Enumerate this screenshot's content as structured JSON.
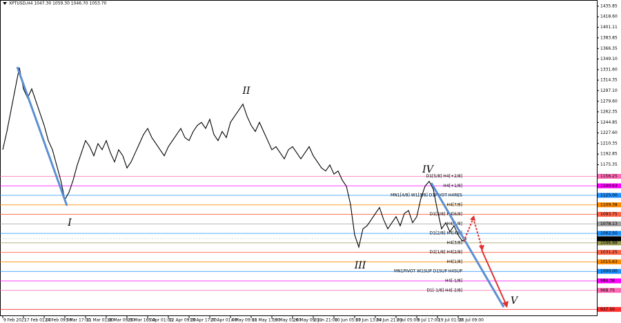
{
  "chart_data": {
    "type": "line",
    "title": "XPTUSD,H4 1047.30 1059.30 1046.70 1053.70",
    "categories": [
      "9 Feb 2021",
      null,
      null,
      null,
      null,
      "17 Feb 01:00",
      null,
      null,
      null,
      null,
      "24 Feb 09:00",
      null,
      null,
      null,
      null,
      "3 Mar 17:00",
      null,
      null,
      null,
      null,
      "11 Mar 01:00",
      null,
      null,
      null,
      null,
      "18 Mar 09:00",
      null,
      null,
      null,
      null,
      "25 Mar 16:00",
      null,
      null,
      null,
      null,
      "5 Apr 01:00",
      null,
      null,
      null,
      null,
      "12 Apr 09:00",
      null,
      null,
      null,
      null,
      "19 Apr 17:00",
      null,
      null,
      null,
      null,
      "27 Apr 01:00",
      null,
      null,
      null,
      null,
      "4 May 09:00",
      null,
      null,
      null,
      null,
      "11 May 17:00",
      null,
      null,
      null,
      null,
      "19 May 01:00",
      null,
      null,
      null,
      null,
      "26 May 09:00",
      null,
      null,
      null,
      null,
      "2 Jun 21:00",
      null,
      null,
      null,
      null,
      "10 Jun 05:00",
      null,
      null,
      null,
      null,
      "17 Jun 13:00",
      null,
      null,
      null,
      null,
      "24 Jun 21:00",
      null,
      null,
      null,
      null,
      "2 Jul 05:00",
      null,
      null,
      null,
      null,
      "9 Jul 17:00",
      null,
      null,
      null,
      null,
      "19 Jul 01:00",
      null,
      null,
      null,
      null,
      "26 Jul 09:00",
      null,
      null
    ],
    "series": [
      {
        "name": "XPTUSD",
        "color": "#000000",
        "values": [
          1200,
          1230,
          1265,
          1300,
          1335,
          1300,
          1285,
          1300,
          1280,
          1260,
          1240,
          1215,
          1200,
          1175,
          1150,
          1118,
          1130,
          1150,
          1175,
          1195,
          1215,
          1205,
          1190,
          1210,
          1200,
          1215,
          1195,
          1180,
          1200,
          1190,
          1170,
          1180,
          1195,
          1210,
          1225,
          1235,
          1220,
          1210,
          1200,
          1190,
          1205,
          1215,
          1225,
          1235,
          1220,
          1215,
          1230,
          1240,
          1245,
          1235,
          1250,
          1225,
          1215,
          1230,
          1220,
          1245,
          1255,
          1265,
          1275,
          1255,
          1240,
          1230,
          1245,
          1230,
          1215,
          1200,
          1205,
          1195,
          1185,
          1200,
          1205,
          1195,
          1185,
          1195,
          1205,
          1190,
          1180,
          1170,
          1165,
          1175,
          1160,
          1165,
          1150,
          1140,
          1110,
          1060,
          1040,
          1070,
          1075,
          1085,
          1095,
          1105,
          1085,
          1070,
          1080,
          1090,
          1075,
          1095,
          1100,
          1080,
          1090,
          1120,
          1140,
          1148,
          1135,
          1100,
          1070,
          1080,
          1065,
          1075,
          1060,
          1050,
          1053.7
        ]
      }
    ],
    "ylim": [
      926.5,
      1446.1
    ],
    "yticks": [
      1435.85,
      {
        "value": 1418.6,
        "label": "1418.60"
      },
      1401.11,
      1383.85,
      1366.35,
      {
        "value": 1349.1,
        "label": "1349.10"
      },
      {
        "value": 1331.6,
        "label": "1331.60"
      },
      1314.35,
      {
        "value": 1297.1,
        "label": "1297.10"
      },
      {
        "value": 1279.6,
        "label": "1279.60"
      },
      1262.35,
      1244.85,
      {
        "value": 1227.6,
        "label": "1227.60"
      },
      1210.35,
      1192.85,
      1175.35
    ],
    "levels": [
      {
        "value": 1156.25,
        "axis_label": "1156.25",
        "text": "D1[5/8] H4[+2/8]",
        "color": "#ff69b4"
      },
      {
        "value": 1140.63,
        "axis_label": "1140.63",
        "text": "H4[+1/8]",
        "color": "#ff00ff"
      },
      {
        "value": 1125,
        "axis_label": "1125.00",
        "text": "MN1[4/8] W1[3/8] D1PIVOT H4RES",
        "color": "#1e90ff"
      },
      {
        "value": 1109.38,
        "axis_label": "1109.38",
        "text": "H4[7/8]",
        "color": "#ff8c00"
      },
      {
        "value": 1093.75,
        "axis_label": "1093.75",
        "text": "D1[3/8] H4[6/8]",
        "color": "#ff6347"
      },
      {
        "value": 1078.13,
        "axis_label": "1078.13",
        "text": "H4[5/8]",
        "color": "#a0a0a0"
      },
      {
        "value": 1062.5,
        "axis_label": "1062.50",
        "text": "D1[2/8] H4[4/8]",
        "color": "#1e90ff"
      },
      {
        "value": 1046.88,
        "axis_label": "1046.88",
        "text": "H4[3/8]",
        "color": "#9a9a50"
      },
      {
        "value": 1031.25,
        "axis_label": "1031.25",
        "text": "D1[1/8] H4[2/8]",
        "color": "#ff6347"
      },
      {
        "value": 1015.63,
        "axis_label": "1015.63",
        "text": "H4[1/8]",
        "color": "#ff8c00"
      },
      {
        "value": 1000,
        "axis_label": "1000.00",
        "text": "MN1PIVOT W1SUP D1SUP H4SUP",
        "color": "#1e90ff"
      },
      {
        "value": 984.38,
        "axis_label": "984.38",
        "text": "H4[-1/8]",
        "color": "#ff00ff"
      },
      {
        "value": 968.75,
        "axis_label": "968.75",
        "text": "D1[-1/8] H4[-2/8]",
        "color": "#ff69b4"
      },
      {
        "value": 937.5,
        "axis_label": "937.50",
        "color": "#ff3030"
      }
    ],
    "last_price": {
      "value": 1053.7,
      "label": "1053.70"
    },
    "waves": [
      "I",
      "II",
      "III",
      "IV",
      "V"
    ]
  }
}
